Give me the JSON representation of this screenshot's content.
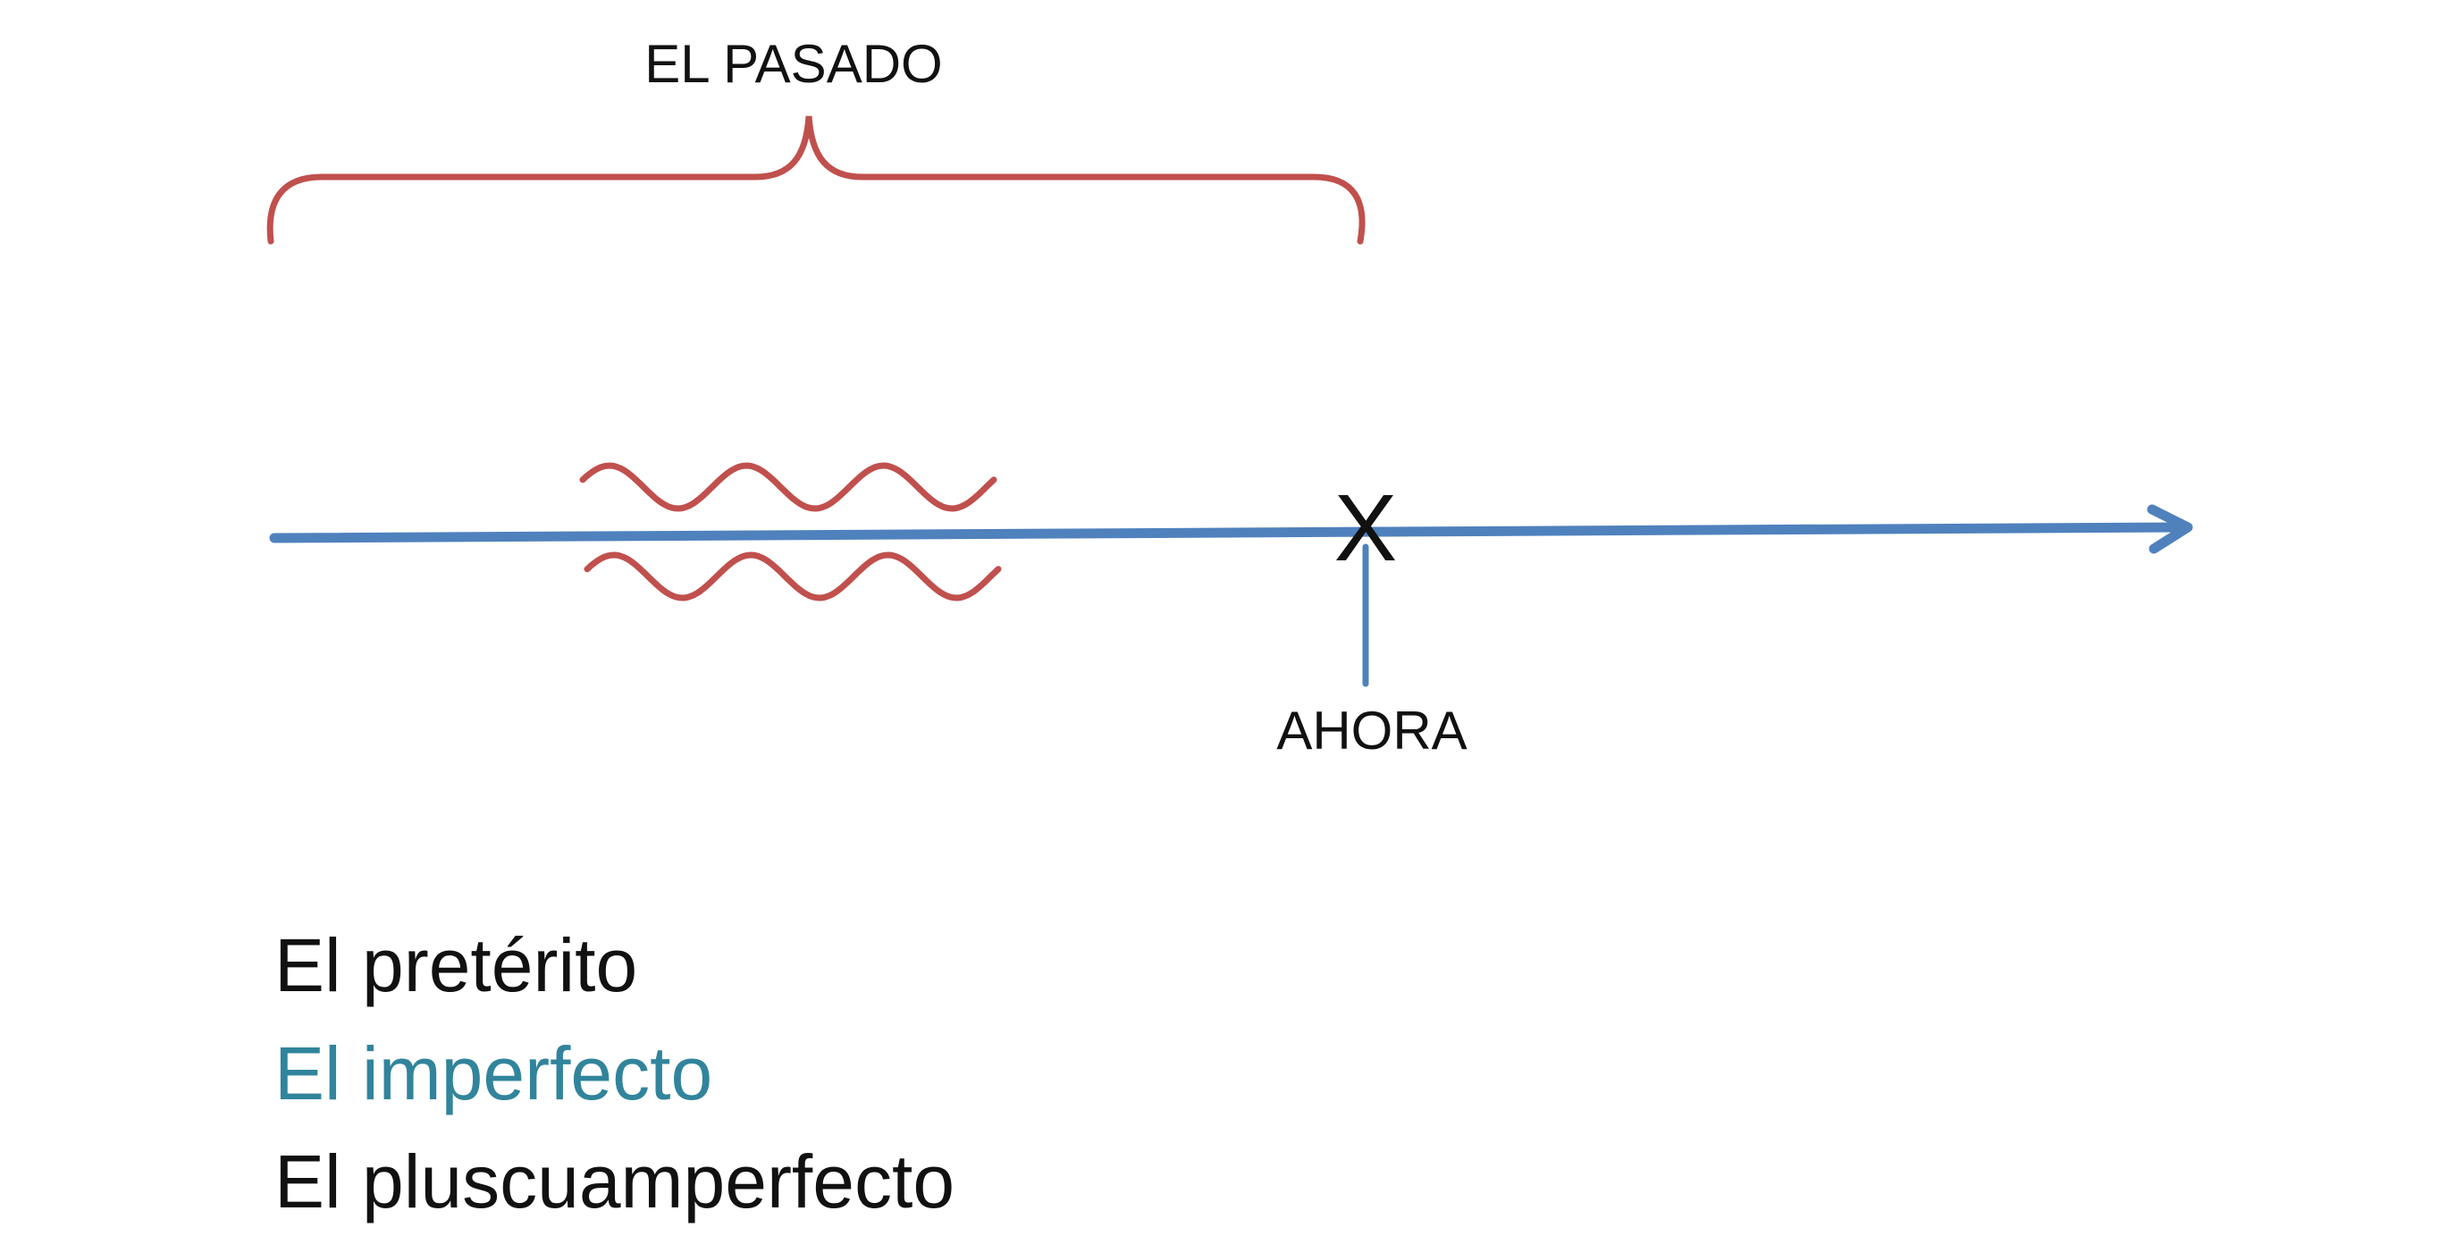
{
  "diagram": {
    "past_label": "EL PASADO",
    "now_label": "AHORA",
    "now_marker": "X",
    "colors": {
      "timeline": "#4f81bd",
      "brace": "#c0504d",
      "waves": "#c0504d",
      "text": "#111111"
    }
  },
  "tenses": [
    {
      "label": "El pretérito",
      "color": "#111111"
    },
    {
      "label": "El imperfecto",
      "color": "#31849b"
    },
    {
      "label": "El pluscuamperfecto",
      "color": "#111111"
    }
  ]
}
